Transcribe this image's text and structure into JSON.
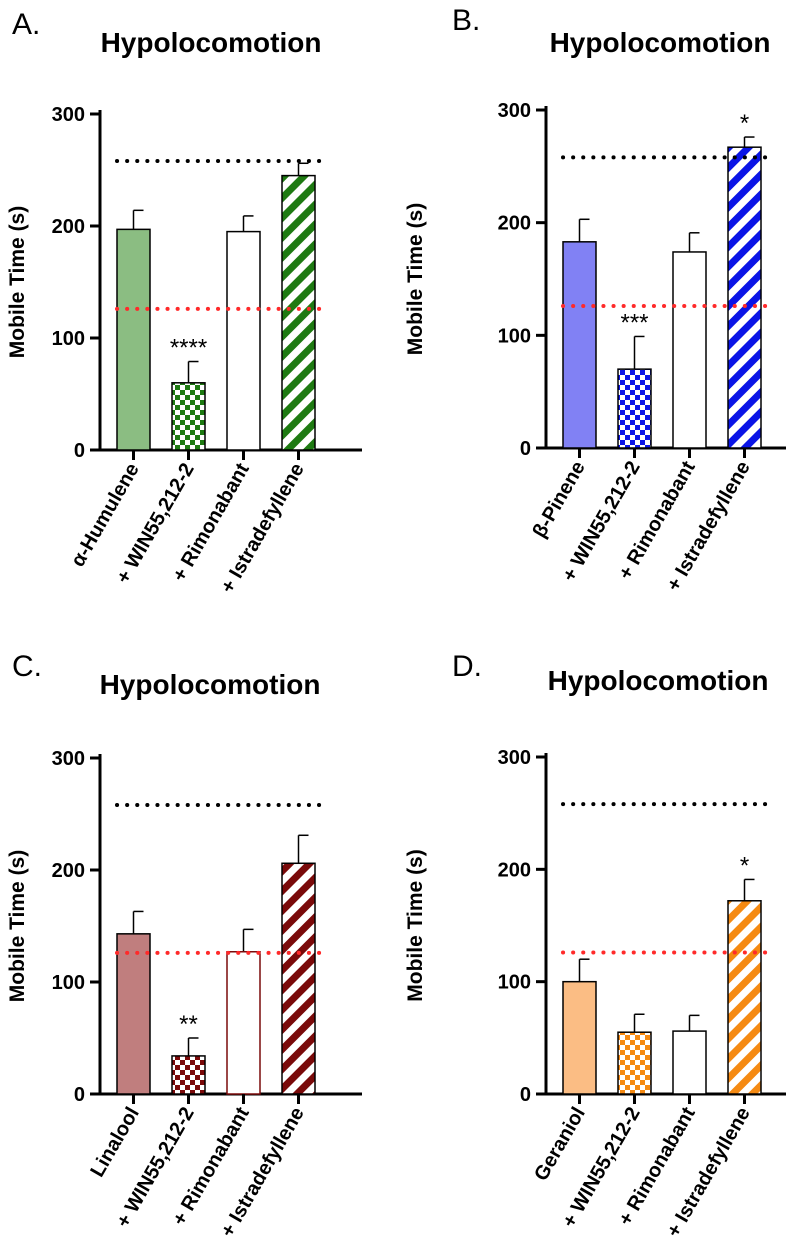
{
  "figure": {
    "colors": {
      "reference_black": "#000000",
      "reference_red": "#ff2a2a"
    }
  },
  "chart_data": [
    {
      "type": "bar",
      "panel": "A.",
      "title": "Hypolocomotion",
      "xlabel": "",
      "ylabel": "Mobile Time (s)",
      "ylim": [
        0,
        300
      ],
      "yticks": [
        0,
        100,
        200,
        300
      ],
      "categories": [
        "α-Humulene",
        "+ WIN55,212-2",
        "+ Rimonabant",
        "+ Istradefyllene"
      ],
      "values": [
        197,
        60,
        195,
        245
      ],
      "errors": [
        17,
        19,
        14,
        11
      ],
      "significance": [
        "",
        "****",
        "",
        ""
      ],
      "patterns": [
        "solid",
        "checker",
        "open",
        "stripes"
      ],
      "color": "#1e7a12",
      "solid_color": "#8bbd82",
      "reference_lines": [
        {
          "value": 258,
          "color": "#000000"
        },
        {
          "value": 126,
          "color": "#ff2a2a"
        }
      ]
    },
    {
      "type": "bar",
      "panel": "B.",
      "title": "Hypolocomotion",
      "xlabel": "",
      "ylabel": "Mobile Time (s)",
      "ylim": [
        0,
        300
      ],
      "yticks": [
        0,
        100,
        200,
        300
      ],
      "categories": [
        "β-Pinene",
        "+ WIN55,212-2",
        "+ Rimonabant",
        "+ Istradefyllene"
      ],
      "values": [
        183,
        70,
        174,
        267
      ],
      "errors": [
        20,
        29,
        17,
        9
      ],
      "significance": [
        "",
        "***",
        "",
        "*"
      ],
      "patterns": [
        "solid",
        "checker",
        "open",
        "stripes"
      ],
      "color": "#0a14e6",
      "solid_color": "#8181f4",
      "reference_lines": [
        {
          "value": 258,
          "color": "#000000"
        },
        {
          "value": 126,
          "color": "#ff2a2a"
        }
      ]
    },
    {
      "type": "bar",
      "panel": "C.",
      "title": "Hypolocomotion",
      "xlabel": "",
      "ylabel": "Mobile Time (s)",
      "ylim": [
        0,
        300
      ],
      "yticks": [
        0,
        100,
        200,
        300
      ],
      "categories": [
        "Linalool",
        "+ WIN55,212-2",
        "+ Rimonabant",
        "+ Istradefyllene"
      ],
      "values": [
        143,
        34,
        127,
        206
      ],
      "errors": [
        20,
        16,
        20,
        25
      ],
      "significance": [
        "",
        "**",
        "",
        ""
      ],
      "patterns": [
        "solid",
        "checker",
        "open",
        "stripes"
      ],
      "color": "#7a0a0a",
      "solid_color": "#c07e7e",
      "reference_lines": [
        {
          "value": 258,
          "color": "#000000"
        },
        {
          "value": 126,
          "color": "#ff2a2a"
        }
      ]
    },
    {
      "type": "bar",
      "panel": "D.",
      "title": "Hypolocomotion",
      "xlabel": "",
      "ylabel": "Mobile Time (s)",
      "ylim": [
        0,
        300
      ],
      "yticks": [
        0,
        100,
        200,
        300
      ],
      "categories": [
        "Geraniol",
        "+ WIN55,212-2",
        "+ Rimonabant",
        "+ Istradefyllene"
      ],
      "values": [
        100,
        55,
        56,
        172
      ],
      "errors": [
        20,
        16,
        14,
        19
      ],
      "significance": [
        "",
        "",
        "",
        "*"
      ],
      "patterns": [
        "solid",
        "checker",
        "open",
        "stripes"
      ],
      "color": "#f58a12",
      "solid_color": "#fbbd84",
      "reference_lines": [
        {
          "value": 258,
          "color": "#000000"
        },
        {
          "value": 126,
          "color": "#ff2a2a"
        }
      ]
    }
  ]
}
